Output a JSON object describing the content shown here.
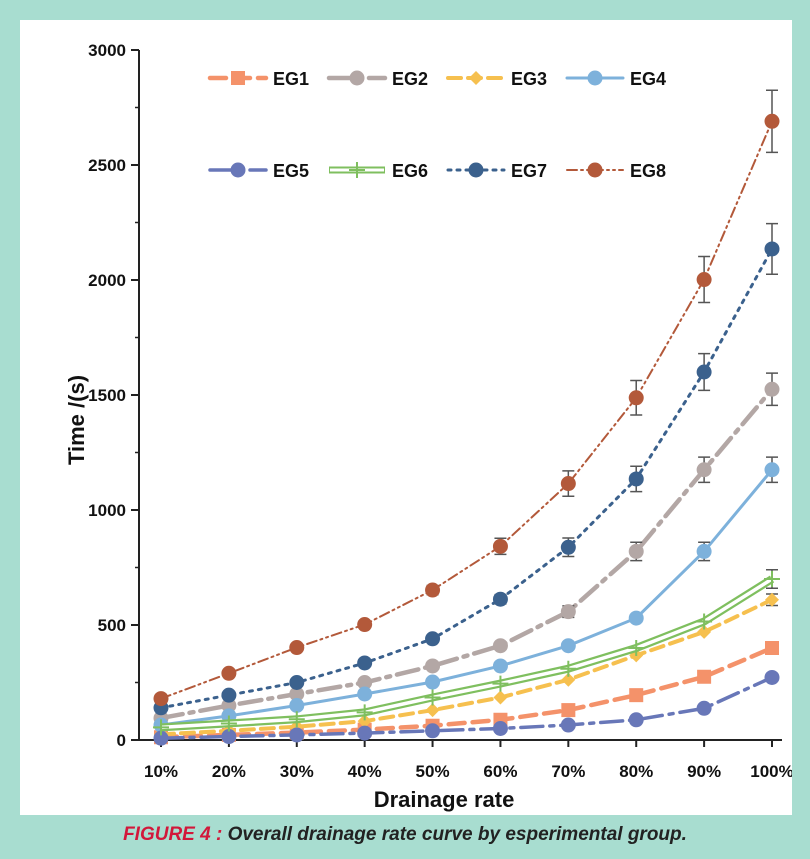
{
  "caption": {
    "label": "FIGURE 4 :",
    "text": "Overall drainage rate curve by esperimental group."
  },
  "chart_data": {
    "type": "line",
    "xlabel": "Drainage rate",
    "ylabel": "Time /(s)",
    "ylim": [
      0,
      3000
    ],
    "yticks": [
      0,
      500,
      1000,
      1500,
      2000,
      2500,
      3000
    ],
    "categories": [
      "10%",
      "20%",
      "30%",
      "40%",
      "50%",
      "60%",
      "70%",
      "80%",
      "90%",
      "100%"
    ],
    "grid": false,
    "legend_position": "top-left",
    "series": [
      {
        "name": "EG1",
        "color": "#f4926a",
        "values": [
          12,
          22,
          32,
          45,
          62,
          88,
          130,
          195,
          275,
          400
        ],
        "errors": [
          0,
          0,
          0,
          0,
          0,
          0,
          0,
          0,
          0,
          0
        ]
      },
      {
        "name": "EG2",
        "color": "#b3a7a5",
        "values": [
          95,
          150,
          200,
          250,
          322,
          410,
          558,
          820,
          1175,
          1525
        ],
        "errors": [
          0,
          0,
          0,
          0,
          0,
          0,
          25,
          40,
          55,
          70
        ]
      },
      {
        "name": "EG3",
        "color": "#f6c04f",
        "values": [
          25,
          40,
          58,
          82,
          130,
          185,
          262,
          368,
          470,
          610
        ],
        "errors": [
          0,
          0,
          0,
          0,
          0,
          0,
          0,
          0,
          0,
          25
        ]
      },
      {
        "name": "EG4",
        "color": "#7db1db",
        "values": [
          65,
          105,
          150,
          200,
          252,
          322,
          410,
          530,
          820,
          1175
        ],
        "errors": [
          0,
          0,
          0,
          0,
          0,
          0,
          0,
          0,
          40,
          55
        ]
      },
      {
        "name": "EG5",
        "color": "#6877b8",
        "values": [
          8,
          15,
          22,
          30,
          40,
          50,
          65,
          88,
          138,
          272
        ],
        "errors": [
          0,
          0,
          0,
          0,
          0,
          0,
          0,
          0,
          0,
          0
        ]
      },
      {
        "name": "EG6",
        "color": "#7fbf5f",
        "values": [
          55,
          72,
          90,
          120,
          185,
          245,
          310,
          400,
          515,
          700
        ],
        "errors": [
          0,
          0,
          0,
          0,
          0,
          0,
          0,
          0,
          0,
          40
        ]
      },
      {
        "name": "EG7",
        "color": "#3b618d",
        "values": [
          140,
          195,
          250,
          335,
          440,
          612,
          838,
          1135,
          1600,
          2135
        ],
        "errors": [
          0,
          0,
          0,
          0,
          0,
          20,
          40,
          55,
          80,
          110
        ]
      },
      {
        "name": "EG8",
        "color": "#b3593a",
        "values": [
          180,
          290,
          402,
          502,
          652,
          842,
          1115,
          1488,
          2002,
          2690
        ],
        "errors": [
          0,
          0,
          0,
          0,
          20,
          35,
          55,
          75,
          100,
          135
        ]
      }
    ]
  }
}
